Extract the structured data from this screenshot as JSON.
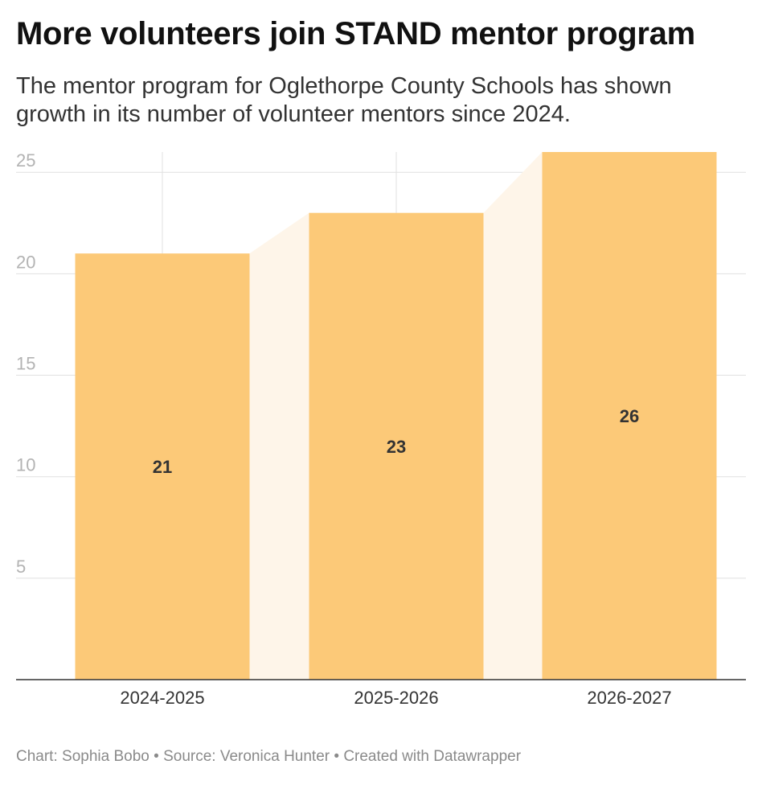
{
  "header": {
    "title": "More volunteers join STAND mentor program",
    "subtitle": "The mentor program for Oglethorpe County Schools has shown growth in its number of volunteer mentors since 2024."
  },
  "footer": {
    "credit_label": "Chart:",
    "credit_name": "Sophia Bobo",
    "separator": "•",
    "source_label": "Source:",
    "source_name": "Veronica Hunter",
    "created_with": "Created with Datawrapper"
  },
  "chart_data": {
    "type": "bar",
    "categories": [
      "2024-2025",
      "2025-2026",
      "2026-2027"
    ],
    "values": [
      21,
      23,
      26
    ],
    "data_labels": [
      "21",
      "23",
      "26"
    ],
    "title": "More volunteers join STAND mentor program",
    "subtitle": "The mentor program for Oglethorpe County Schools has shown growth in its number of volunteer mentors since 2024.",
    "xlabel": "",
    "ylabel": "",
    "ylim": [
      0,
      26
    ],
    "yticks": [
      5,
      10,
      15,
      20,
      25
    ],
    "grid": true,
    "legend": "none",
    "colors": {
      "bar": "#fcc978",
      "connector": "#fef5e9",
      "grid": "#e1e1e1",
      "axis": "#333333",
      "tick_label": "#b3b3b3",
      "data_label": "#333333",
      "category_label": "#333333"
    }
  }
}
